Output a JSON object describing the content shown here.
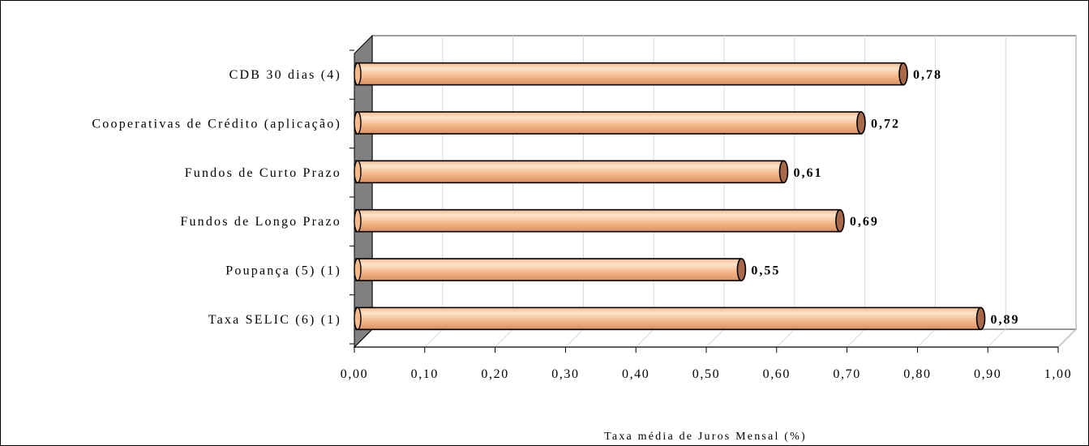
{
  "top_caption": "",
  "chart_data": {
    "type": "bar",
    "orientation": "horizontal",
    "categories": [
      "CDB 30 dias (4)",
      "Cooperativas de Crédito (aplicação)",
      "Fundos de Curto Prazo",
      "Fundos de Longo Prazo",
      "Poupança (5) (1)",
      "Taxa SELIC (6) (1)"
    ],
    "values": [
      0.78,
      0.72,
      0.61,
      0.69,
      0.55,
      0.89
    ],
    "value_labels": [
      "0,78",
      "0,72",
      "0,61",
      "0,69",
      "0,55",
      "0,89"
    ],
    "x_ticks": [
      "0,00",
      "0,10",
      "0,20",
      "0,30",
      "0,40",
      "0,50",
      "0,60",
      "0,70",
      "0,80",
      "0,90",
      "1,00"
    ],
    "xlim": [
      0,
      1
    ],
    "xlabel": "Taxa média de Juros Mensal (%)",
    "ylabel": "",
    "grid": true,
    "legend": "none",
    "colors": {
      "bar_fill_light": "#FCE4CC",
      "bar_fill_mid": "#F4B98A",
      "bar_fill_dark": "#D99060",
      "bar_end_cap": "#A8684A",
      "wall": "#808080",
      "floor": "#C0C0C0",
      "grid": "#D9D9D9"
    }
  }
}
